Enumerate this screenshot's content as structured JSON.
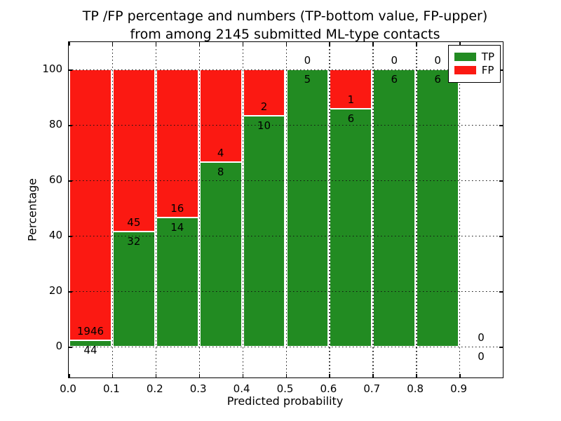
{
  "chart_data": {
    "type": "bar",
    "stacked": true,
    "units": "percent",
    "title_line1": "TP /FP percentage and numbers (TP-bottom value, FP-upper)",
    "title_line2": "from among 2145 submitted ML-type contacts",
    "xlabel": "Predicted probability",
    "ylabel": "Percentage",
    "total_contacts": 2145,
    "xlim": [
      0.0,
      1.0
    ],
    "ylim_display": [
      -11.1,
      109.9
    ],
    "xtick_labels": [
      "0.0",
      "0.1",
      "0.2",
      "0.3",
      "0.4",
      "0.5",
      "0.6",
      "0.7",
      "0.8",
      "0.9"
    ],
    "xtick_values": [
      0.0,
      0.1,
      0.2,
      0.3,
      0.4,
      0.5,
      0.6,
      0.7,
      0.8,
      0.9
    ],
    "ytick_values": [
      0,
      20,
      40,
      60,
      80,
      100
    ],
    "grid": "dotted black, drawn over bars",
    "legend": {
      "position": "upper right",
      "items": [
        {
          "label": "TP",
          "color": "#228b22"
        },
        {
          "label": "FP",
          "color": "#fb1912"
        }
      ]
    },
    "bins": [
      {
        "range": [
          0.0,
          0.1
        ],
        "tp": 44,
        "fp": 1946
      },
      {
        "range": [
          0.1,
          0.2
        ],
        "tp": 32,
        "fp": 45
      },
      {
        "range": [
          0.2,
          0.3
        ],
        "tp": 14,
        "fp": 16
      },
      {
        "range": [
          0.3,
          0.4
        ],
        "tp": 8,
        "fp": 4
      },
      {
        "range": [
          0.4,
          0.5
        ],
        "tp": 10,
        "fp": 2
      },
      {
        "range": [
          0.5,
          0.6
        ],
        "tp": 5,
        "fp": 0
      },
      {
        "range": [
          0.6,
          0.7
        ],
        "tp": 6,
        "fp": 1
      },
      {
        "range": [
          0.7,
          0.8
        ],
        "tp": 6,
        "fp": 0
      },
      {
        "range": [
          0.8,
          0.9
        ],
        "tp": 6,
        "fp": 0
      },
      {
        "range": [
          0.9,
          1.0
        ],
        "tp": 0,
        "fp": 0
      }
    ],
    "colors": {
      "tp": "#228b22",
      "fp": "#fb1912",
      "grid": "#111111",
      "background": "#ffffff",
      "bar_edge": "#ffffff"
    }
  }
}
